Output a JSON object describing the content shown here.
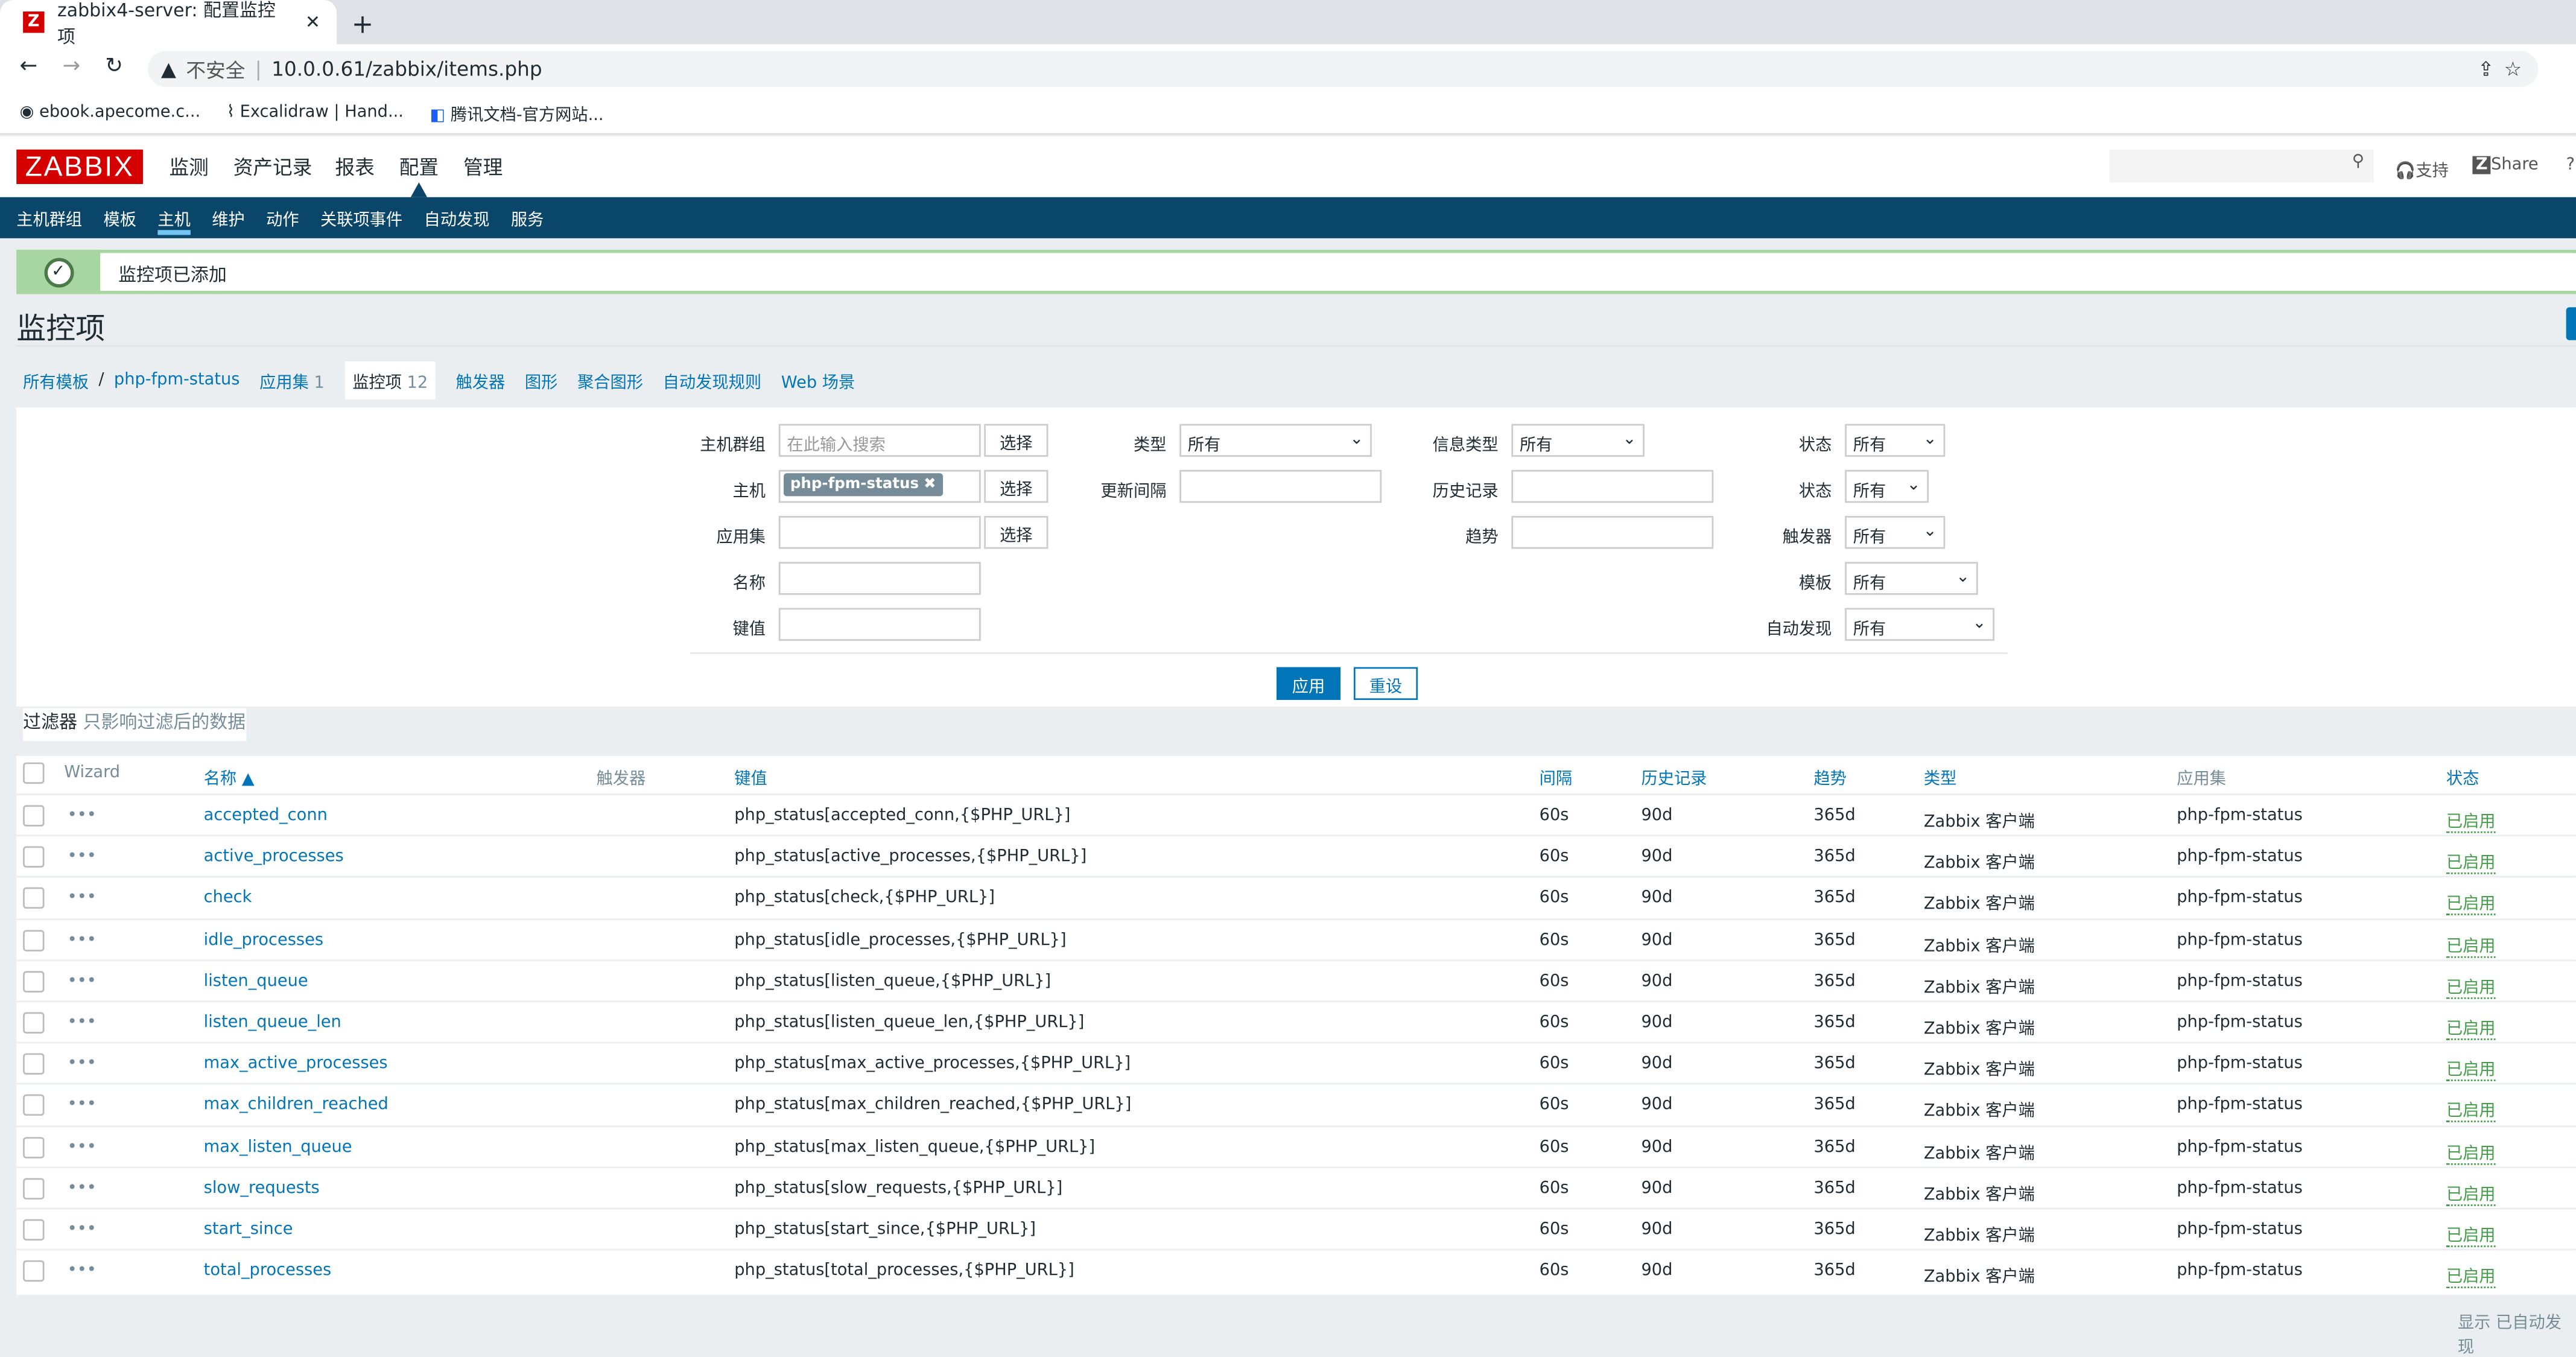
{
  "browser": {
    "tab_title": "zabbix4-server: 配置监控项",
    "insecure": "不安全",
    "url": "10.0.0.61/zabbix/items.php",
    "bookmarks": [
      "ebook.apecome.c...",
      "Excalidraw | Hand...",
      "腾讯文档-官方网站..."
    ]
  },
  "header": {
    "logo": "ZABBIX",
    "menu": [
      "监测",
      "资产记录",
      "报表",
      "配置",
      "管理"
    ],
    "support": "支持",
    "share": "Share",
    "help": "?"
  },
  "subnav": [
    "主机群组",
    "模板",
    "主机",
    "维护",
    "动作",
    "关联项事件",
    "自动发现",
    "服务"
  ],
  "message": "监控项已添加",
  "page_title": "监控项",
  "breadcrumbs": {
    "all_templates": "所有模板",
    "sep": "/",
    "host": "php-fpm-status",
    "apps": "应用集",
    "apps_count": "1",
    "items": "监控项",
    "items_count": "12",
    "triggers": "触发器",
    "graphs": "图形",
    "screens": "聚合图形",
    "discovery": "自动发现规则",
    "web": "Web 场景"
  },
  "filter": {
    "host_group_label": "主机群组",
    "host_group_placeholder": "在此输入搜索",
    "select": "选择",
    "host_label": "主机",
    "host_chip": "php-fpm-status",
    "app_label": "应用集",
    "name_label": "名称",
    "key_label": "键值",
    "type_label": "类型",
    "type_value": "所有",
    "interval_label": "更新间隔",
    "info_type_label": "信息类型",
    "info_type_value": "所有",
    "history_label": "历史记录",
    "trends_label": "趋势",
    "state_label": "状态",
    "state_value": "所有",
    "status_label": "状态",
    "status_value": "所有",
    "triggers_label": "触发器",
    "triggers_value": "所有",
    "template_label": "模板",
    "template_value": "所有",
    "discovered_label": "自动发现",
    "discovered_value": "所有",
    "apply": "应用",
    "reset": "重设",
    "tab_label": "过滤器",
    "tab_note": "只影响过滤后的数据"
  },
  "table": {
    "headers": {
      "wizard": "Wizard",
      "name": "名称 ▲",
      "triggers": "触发器",
      "key": "键值",
      "interval": "间隔",
      "history": "历史记录",
      "trends": "趋势",
      "type": "类型",
      "apps": "应用集",
      "status": "状态"
    },
    "rows": [
      {
        "name": "accepted_conn",
        "key": "php_status[accepted_conn,{$PHP_URL}]"
      },
      {
        "name": "active_processes",
        "key": "php_status[active_processes,{$PHP_URL}]"
      },
      {
        "name": "check",
        "key": "php_status[check,{$PHP_URL}]"
      },
      {
        "name": "idle_processes",
        "key": "php_status[idle_processes,{$PHP_URL}]"
      },
      {
        "name": "listen_queue",
        "key": "php_status[listen_queue,{$PHP_URL}]"
      },
      {
        "name": "listen_queue_len",
        "key": "php_status[listen_queue_len,{$PHP_URL}]"
      },
      {
        "name": "max_active_processes",
        "key": "php_status[max_active_processes,{$PHP_URL}]"
      },
      {
        "name": "max_children_reached",
        "key": "php_status[max_children_reached,{$PHP_URL}]"
      },
      {
        "name": "max_listen_queue",
        "key": "php_status[max_listen_queue,{$PHP_URL}]"
      },
      {
        "name": "slow_requests",
        "key": "php_status[slow_requests,{$PHP_URL}]"
      },
      {
        "name": "start_since",
        "key": "php_status[start_since,{$PHP_URL}]"
      },
      {
        "name": "total_processes",
        "key": "php_status[total_processes,{$PHP_URL}]"
      }
    ],
    "common": {
      "interval": "60s",
      "history": "90d",
      "trends": "365d",
      "type": "Zabbix 客户端",
      "app": "php-fpm-status",
      "status": "已启用",
      "wizard": "•••"
    }
  },
  "footer": "显示 已自动发现",
  "colors": {
    "brand": "#d40000",
    "nav": "#0a466a",
    "link": "#0275b8",
    "enabled": "#429e47"
  }
}
